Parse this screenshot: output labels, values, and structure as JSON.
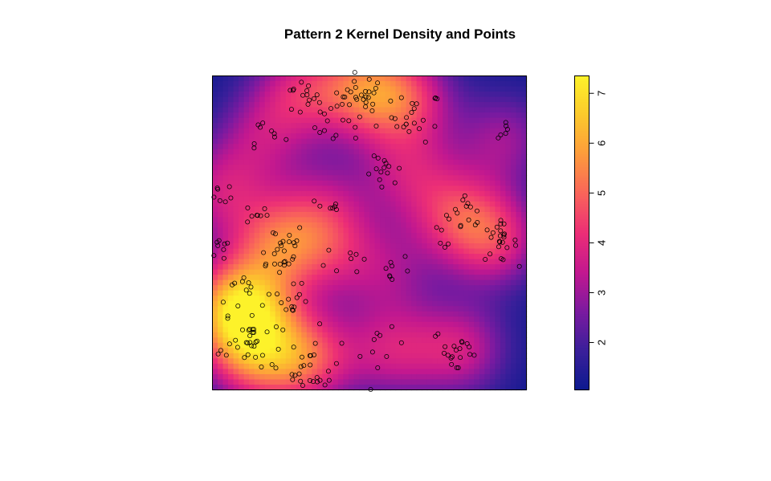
{
  "chart_data": {
    "type": "heatmap",
    "title": "Pattern 2 Kernel Density and Points",
    "xlabel": "",
    "ylabel": "",
    "xlim": [
      0,
      1
    ],
    "ylim": [
      0,
      1
    ],
    "colorbar": {
      "range": [
        1.05,
        7.35
      ],
      "ticks": [
        2,
        3,
        4,
        5,
        6,
        7
      ],
      "tick_labels": [
        "2",
        "3",
        "4",
        "5",
        "6",
        "7"
      ],
      "palette": [
        "#0d1a8f",
        "#3a1f9a",
        "#7b1aa0",
        "#c3188f",
        "#ec2e76",
        "#f9645a",
        "#fd9b3c",
        "#fcc92c",
        "#fdf22a"
      ]
    },
    "density_peaks": [
      {
        "x": 0.47,
        "y": 0.96,
        "value": 7.2
      },
      {
        "x": 0.62,
        "y": 0.93,
        "value": 6.3
      },
      {
        "x": 0.27,
        "y": 0.95,
        "value": 5.4
      },
      {
        "x": 0.21,
        "y": 0.47,
        "value": 6.9
      },
      {
        "x": 0.05,
        "y": 0.25,
        "value": 6.8
      },
      {
        "x": 0.12,
        "y": 0.27,
        "value": 6.5
      },
      {
        "x": 0.3,
        "y": 0.1,
        "value": 7.35
      },
      {
        "x": 0.13,
        "y": 0.1,
        "value": 6.8
      },
      {
        "x": 0.9,
        "y": 0.48,
        "value": 6.4
      },
      {
        "x": 0.77,
        "y": 0.56,
        "value": 5.6
      },
      {
        "x": 0.79,
        "y": 0.13,
        "value": 5.7
      },
      {
        "x": 0.57,
        "y": 0.12,
        "value": 5.3
      },
      {
        "x": 0.62,
        "y": 0.7,
        "value": 4.8
      },
      {
        "x": 0.02,
        "y": 0.63,
        "value": 5.2
      },
      {
        "x": 0.15,
        "y": 0.8,
        "value": 4.3
      },
      {
        "x": 0.93,
        "y": 0.8,
        "value": 4.6
      },
      {
        "x": 0.38,
        "y": 0.45,
        "value": 4.6
      },
      {
        "x": 0.56,
        "y": 0.37,
        "value": 4.0
      },
      {
        "x": 0.36,
        "y": 0.6,
        "value": 3.9
      }
    ],
    "clusters": [
      {
        "x": 0.47,
        "y": 0.92,
        "n": 34,
        "spread": 0.045
      },
      {
        "x": 0.65,
        "y": 0.87,
        "n": 22,
        "spread": 0.04
      },
      {
        "x": 0.28,
        "y": 0.93,
        "n": 14,
        "spread": 0.03
      },
      {
        "x": 0.36,
        "y": 0.84,
        "n": 9,
        "spread": 0.03
      },
      {
        "x": 0.15,
        "y": 0.82,
        "n": 9,
        "spread": 0.04
      },
      {
        "x": 0.55,
        "y": 0.68,
        "n": 14,
        "spread": 0.03
      },
      {
        "x": 0.03,
        "y": 0.63,
        "n": 8,
        "spread": 0.022
      },
      {
        "x": 0.14,
        "y": 0.56,
        "n": 8,
        "spread": 0.018
      },
      {
        "x": 0.37,
        "y": 0.58,
        "n": 7,
        "spread": 0.02
      },
      {
        "x": 0.21,
        "y": 0.45,
        "n": 26,
        "spread": 0.045
      },
      {
        "x": 0.04,
        "y": 0.45,
        "n": 8,
        "spread": 0.025
      },
      {
        "x": 0.44,
        "y": 0.43,
        "n": 8,
        "spread": 0.04
      },
      {
        "x": 0.57,
        "y": 0.38,
        "n": 8,
        "spread": 0.03
      },
      {
        "x": 0.09,
        "y": 0.32,
        "n": 16,
        "spread": 0.04
      },
      {
        "x": 0.26,
        "y": 0.27,
        "n": 14,
        "spread": 0.03
      },
      {
        "x": 0.12,
        "y": 0.15,
        "n": 22,
        "spread": 0.05
      },
      {
        "x": 0.32,
        "y": 0.07,
        "n": 26,
        "spread": 0.045
      },
      {
        "x": 0.54,
        "y": 0.12,
        "n": 10,
        "spread": 0.035
      },
      {
        "x": 0.78,
        "y": 0.12,
        "n": 20,
        "spread": 0.04
      },
      {
        "x": 0.75,
        "y": 0.52,
        "n": 10,
        "spread": 0.025
      },
      {
        "x": 0.82,
        "y": 0.57,
        "n": 10,
        "spread": 0.025
      },
      {
        "x": 0.91,
        "y": 0.47,
        "n": 24,
        "spread": 0.03
      },
      {
        "x": 0.94,
        "y": 0.83,
        "n": 6,
        "spread": 0.015
      },
      {
        "x": 0.09,
        "y": 0.15,
        "n": 10,
        "spread": 0.04
      }
    ]
  }
}
